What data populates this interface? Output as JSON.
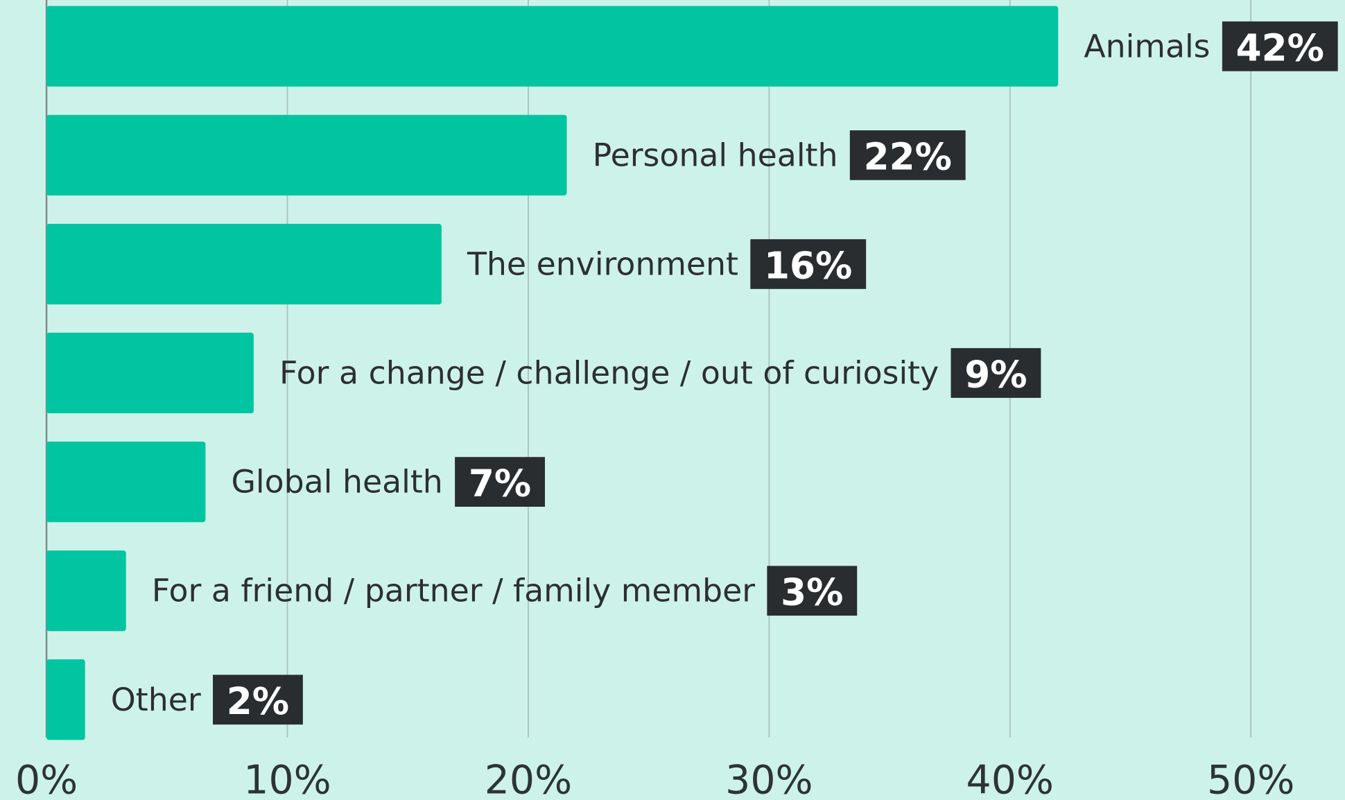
{
  "chart_data": {
    "type": "barh",
    "categories": [
      "Animals",
      "Personal health",
      "The environment",
      "For a change / challenge / out of curiosity",
      "Global health",
      "For a friend / partner / family member",
      "Other"
    ],
    "values": [
      42,
      21.6,
      16.4,
      8.6,
      6.6,
      3.3,
      1.6
    ],
    "value_labels": [
      "42%",
      "22%",
      "16%",
      "9%",
      "7%",
      "3%",
      "2%"
    ],
    "color": "#00c5a0",
    "xlim": [
      0,
      53.9
    ],
    "xticks": [
      {
        "value": 0,
        "label": "0%"
      },
      {
        "value": 10,
        "label": "10%"
      },
      {
        "value": 20,
        "label": "20%"
      },
      {
        "value": 30,
        "label": "30%"
      },
      {
        "value": 40,
        "label": "40%"
      },
      {
        "value": 50,
        "label": "50%"
      }
    ],
    "grid": true
  }
}
